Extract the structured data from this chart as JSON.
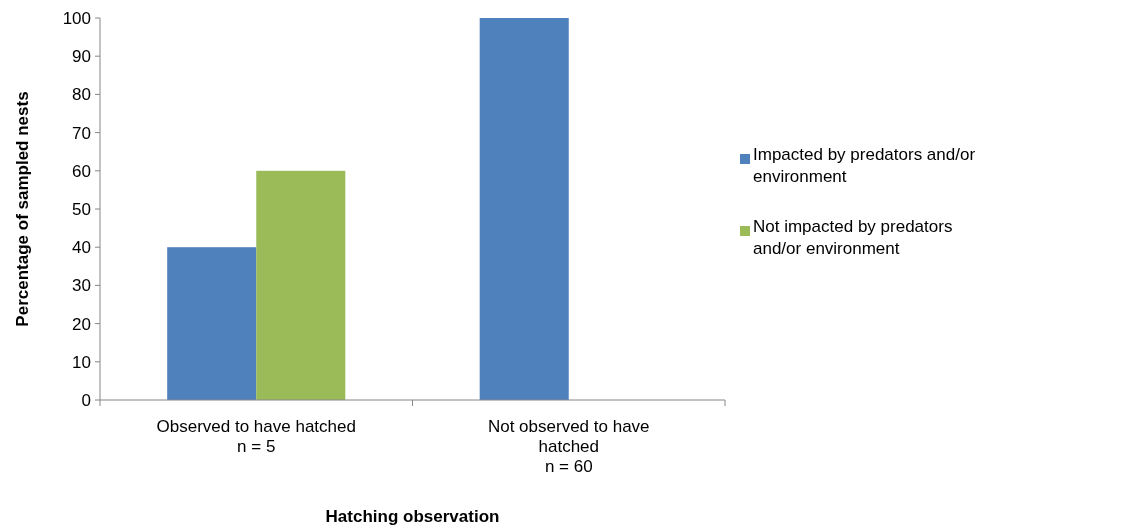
{
  "chart_data": {
    "type": "bar",
    "xlabel": "Hatching observation",
    "ylabel": "Percentage of sampled nests",
    "categories": [
      "Observed to have hatched\nn = 5",
      "Not observed to have\nhatched\nn = 60"
    ],
    "series": [
      {
        "name": "Impacted by predators and/or environment",
        "color": "#4f81bd",
        "values": [
          40,
          100
        ]
      },
      {
        "name": "Not impacted by predators and/or environment",
        "color": "#9bbb59",
        "values": [
          60,
          0
        ]
      }
    ],
    "ylim": [
      0,
      100
    ],
    "yticks": [
      0,
      10,
      20,
      30,
      40,
      50,
      60,
      70,
      80,
      90,
      100
    ],
    "grid": false,
    "legend": "right"
  }
}
